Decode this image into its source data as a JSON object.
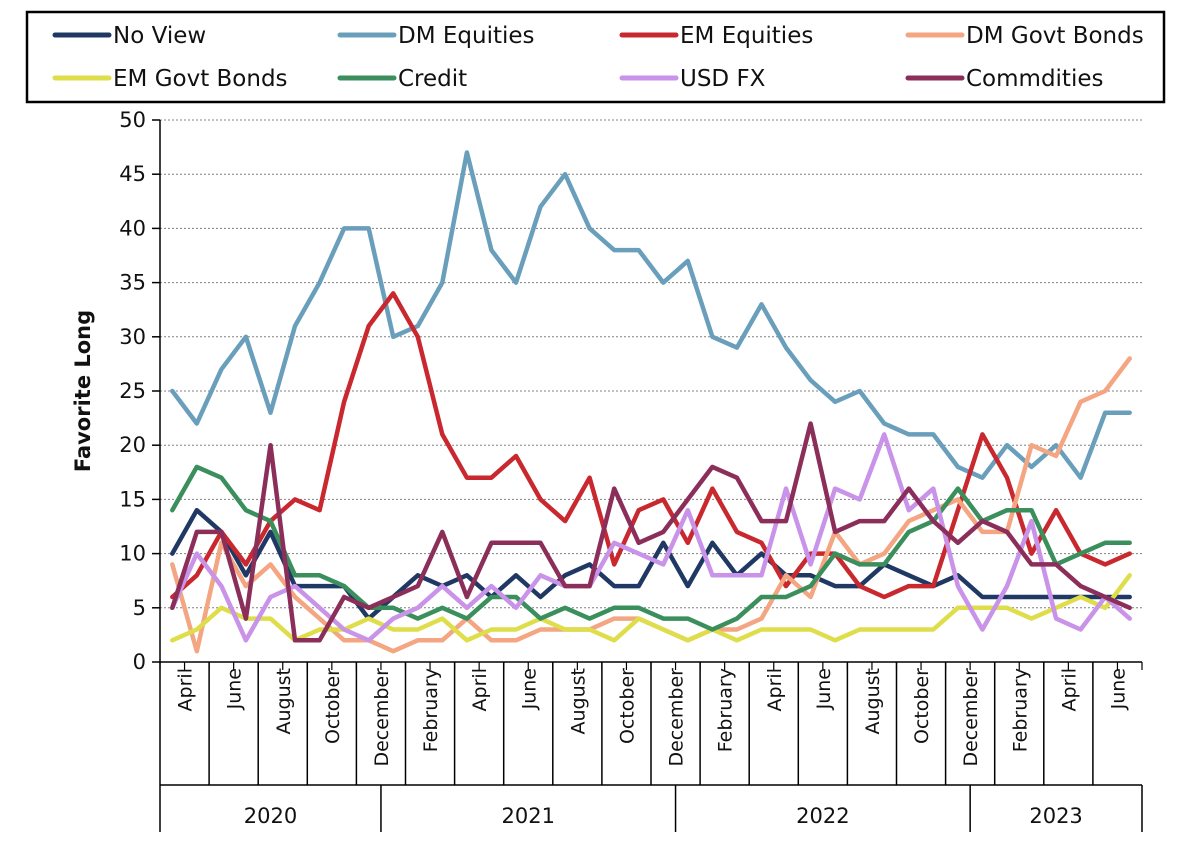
{
  "chart_data": {
    "type": "line",
    "title": "",
    "xlabel": "",
    "ylabel": "Favorite Long",
    "ylim": [
      0,
      50
    ],
    "yticks": [
      0,
      5,
      10,
      15,
      20,
      25,
      30,
      35,
      40,
      45,
      50
    ],
    "grid": "horizontal dotted",
    "legend_position": "top",
    "x": [
      "2020-04",
      "2020-05",
      "2020-06",
      "2020-07",
      "2020-08",
      "2020-09",
      "2020-10",
      "2020-11",
      "2020-12",
      "2021-01",
      "2021-02",
      "2021-03",
      "2021-04",
      "2021-05",
      "2021-06",
      "2021-07",
      "2021-08",
      "2021-09",
      "2021-10",
      "2021-11",
      "2021-12",
      "2022-01",
      "2022-02",
      "2022-03",
      "2022-04",
      "2022-05",
      "2022-06",
      "2022-07",
      "2022-08",
      "2022-09",
      "2022-10",
      "2022-11",
      "2022-12",
      "2023-01",
      "2023-02",
      "2023-03",
      "2023-04",
      "2023-05",
      "2023-06",
      "2023-07"
    ],
    "month_labels": [
      {
        "label": "April",
        "index": 0
      },
      {
        "label": "June",
        "index": 2
      },
      {
        "label": "August",
        "index": 4
      },
      {
        "label": "October",
        "index": 6
      },
      {
        "label": "December",
        "index": 8
      },
      {
        "label": "February",
        "index": 10
      },
      {
        "label": "April",
        "index": 12
      },
      {
        "label": "June",
        "index": 14
      },
      {
        "label": "August",
        "index": 16
      },
      {
        "label": "October",
        "index": 18
      },
      {
        "label": "December",
        "index": 20
      },
      {
        "label": "February",
        "index": 22
      },
      {
        "label": "April",
        "index": 24
      },
      {
        "label": "June",
        "index": 26
      },
      {
        "label": "August",
        "index": 28
      },
      {
        "label": "October",
        "index": 30
      },
      {
        "label": "December",
        "index": 32
      },
      {
        "label": "February",
        "index": 34
      },
      {
        "label": "April",
        "index": 36
      },
      {
        "label": "June",
        "index": 38
      }
    ],
    "years": [
      {
        "label": "2020",
        "start": 0,
        "end": 8
      },
      {
        "label": "2021",
        "start": 9,
        "end": 20
      },
      {
        "label": "2022",
        "start": 21,
        "end": 32
      },
      {
        "label": "2023",
        "start": 33,
        "end": 39
      }
    ],
    "series": [
      {
        "name": "No View",
        "color": "#1f3864",
        "values": [
          10,
          14,
          12,
          8,
          12,
          7,
          7,
          7,
          4,
          6,
          8,
          7,
          8,
          6,
          8,
          6,
          8,
          9,
          7,
          7,
          11,
          7,
          11,
          8,
          10,
          8,
          8,
          7,
          7,
          9,
          8,
          7,
          8,
          6,
          6,
          6,
          6,
          6,
          6,
          6
        ]
      },
      {
        "name": "DM Equities",
        "color": "#6a9fbc",
        "values": [
          25,
          22,
          27,
          30,
          23,
          31,
          35,
          40,
          40,
          30,
          31,
          35,
          47,
          38,
          35,
          42,
          45,
          40,
          38,
          38,
          35,
          37,
          30,
          29,
          33,
          29,
          26,
          24,
          25,
          22,
          21,
          21,
          18,
          17,
          20,
          18,
          20,
          17,
          23,
          23
        ]
      },
      {
        "name": "EM Equities",
        "color": "#c8282e",
        "values": [
          6,
          8,
          12,
          9,
          13,
          15,
          14,
          24,
          31,
          34,
          30,
          21,
          17,
          17,
          19,
          15,
          13,
          17,
          9,
          14,
          15,
          11,
          16,
          12,
          11,
          7,
          10,
          10,
          7,
          6,
          7,
          7,
          14,
          21,
          17,
          10,
          14,
          10,
          9,
          10
        ]
      },
      {
        "name": "DM Govt Bonds",
        "color": "#f4a582",
        "values": [
          9,
          1,
          11,
          7,
          9,
          6,
          4,
          2,
          2,
          1,
          2,
          2,
          4,
          2,
          2,
          3,
          3,
          3,
          4,
          4,
          3,
          2,
          3,
          3,
          4,
          8,
          6,
          12,
          9,
          10,
          13,
          14,
          15,
          12,
          12,
          20,
          19,
          24,
          25,
          28
        ]
      },
      {
        "name": "EM Govt Bonds",
        "color": "#dede4a",
        "values": [
          2,
          3,
          5,
          4,
          4,
          2,
          3,
          3,
          4,
          3,
          3,
          4,
          2,
          3,
          3,
          4,
          3,
          3,
          2,
          4,
          3,
          2,
          3,
          2,
          3,
          3,
          3,
          2,
          3,
          3,
          3,
          3,
          5,
          5,
          5,
          4,
          5,
          6,
          5,
          8
        ]
      },
      {
        "name": "Credit",
        "color": "#3a8f5c",
        "values": [
          14,
          18,
          17,
          14,
          13,
          8,
          8,
          7,
          5,
          5,
          4,
          5,
          4,
          6,
          6,
          4,
          5,
          4,
          5,
          5,
          4,
          4,
          3,
          4,
          6,
          6,
          7,
          10,
          9,
          9,
          12,
          13,
          16,
          13,
          14,
          14,
          9,
          10,
          11,
          11
        ]
      },
      {
        "name": "USD FX",
        "color": "#c893e8",
        "values": [
          5,
          10,
          7,
          2,
          6,
          7,
          5,
          3,
          2,
          4,
          5,
          7,
          5,
          7,
          5,
          8,
          7,
          7,
          11,
          10,
          9,
          14,
          8,
          8,
          8,
          16,
          9,
          16,
          15,
          21,
          14,
          16,
          7,
          3,
          7,
          13,
          4,
          3,
          6,
          4
        ]
      },
      {
        "name": "Commdities",
        "color": "#8b2f5a",
        "values": [
          5,
          12,
          12,
          4,
          20,
          2,
          2,
          6,
          5,
          6,
          7,
          12,
          6,
          11,
          11,
          11,
          7,
          7,
          16,
          11,
          12,
          15,
          18,
          17,
          13,
          13,
          22,
          12,
          13,
          13,
          16,
          13,
          11,
          13,
          12,
          9,
          9,
          7,
          6,
          5
        ]
      }
    ]
  }
}
